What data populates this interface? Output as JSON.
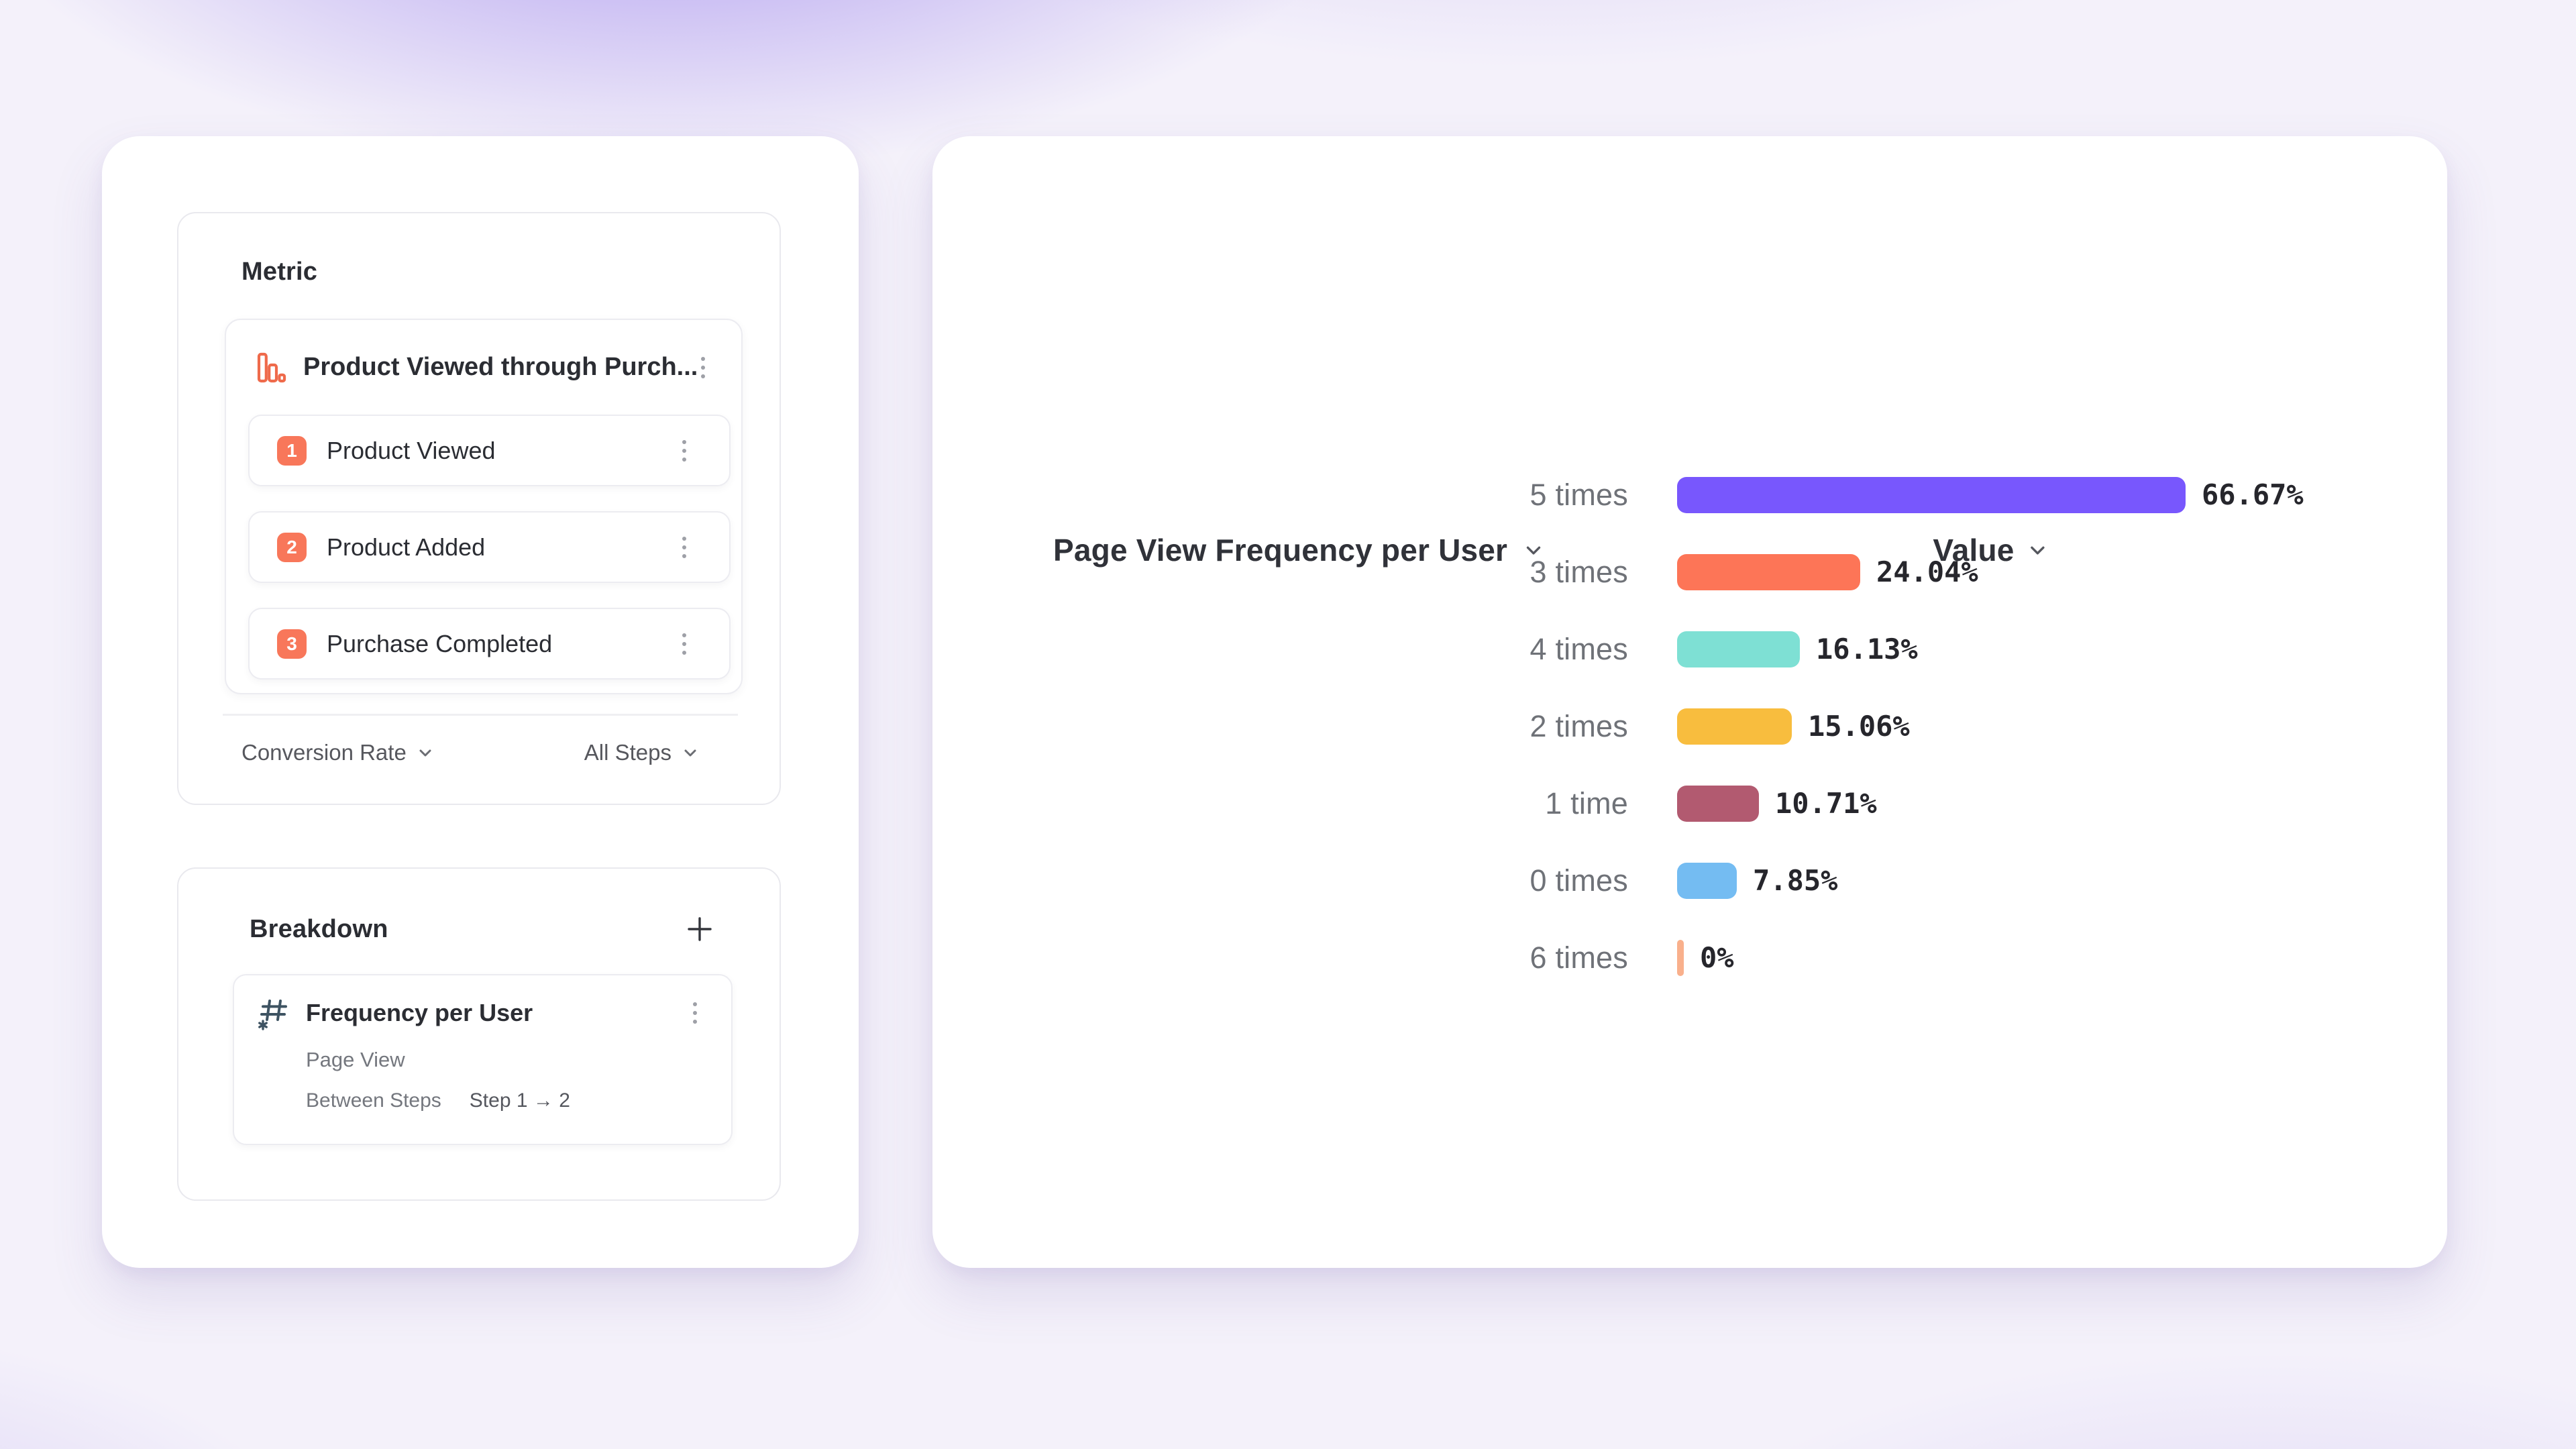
{
  "metric": {
    "title": "Metric",
    "funnel": {
      "icon": "funnel-bar-chart-icon",
      "name": "Product Viewed through Purch...",
      "steps": [
        {
          "number": "1",
          "label": "Product Viewed"
        },
        {
          "number": "2",
          "label": "Product Added"
        },
        {
          "number": "3",
          "label": "Purchase Completed"
        }
      ]
    },
    "conversion_dropdown_label": "Conversion Rate",
    "steps_dropdown_label": "All Steps"
  },
  "breakdown": {
    "title": "Breakdown",
    "add_icon": "plus-icon",
    "item": {
      "icon": "number-property-hash-icon",
      "name": "Frequency per User",
      "event": "Page View",
      "between_steps_label": "Between Steps",
      "step_range": "Step 1 → 2"
    }
  },
  "chart_data": {
    "type": "bar",
    "orientation": "horizontal",
    "title": "Page View Frequency per User",
    "value_header": "Value",
    "categories": [
      "5 times",
      "3 times",
      "4 times",
      "2 times",
      "1 time",
      "0 times",
      "6 times"
    ],
    "values": [
      66.67,
      24.04,
      16.13,
      15.06,
      10.71,
      7.85,
      0
    ],
    "value_labels": [
      "66.67%",
      "24.04%",
      "16.13%",
      "15.06%",
      "10.71%",
      "7.85%",
      "0%"
    ],
    "bar_colors": [
      "#7857FD",
      "#FD7557",
      "#7EE0D4",
      "#F8BD3E",
      "#B25A70",
      "#74BCF2",
      "#F9B08C"
    ],
    "xlim": [
      0,
      100
    ],
    "grid": false,
    "legend": "none"
  },
  "colors": {
    "accent_orange": "#F8775A",
    "text_dark": "#2B2D33",
    "text_gray": "#6F7278",
    "border": "#ECECF1"
  }
}
